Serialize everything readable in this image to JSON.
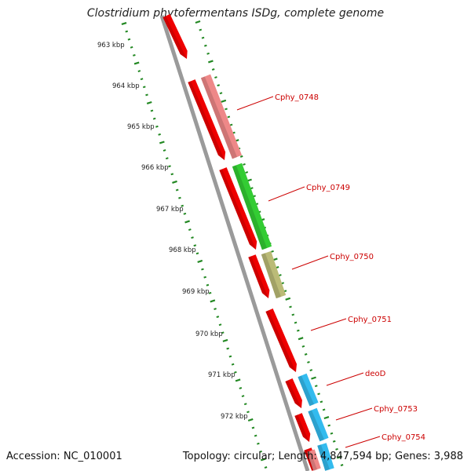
{
  "title": "Clostridium phytofermentans ISDg, complete genome",
  "footer": {
    "accession": "Accession: NC_010001",
    "topology": "Topology: circular; Length: 4,847,594 bp; Genes: 3,988"
  },
  "scale_labels": [
    "963 kbp",
    "964 kbp",
    "965 kbp",
    "966 kbp",
    "967 kbp",
    "968 kbp",
    "969 kbp",
    "970 kbp",
    "971 kbp",
    "972 kbp"
  ],
  "gene_labels": [
    "Cphy_0748",
    "Cphy_0749",
    "Cphy_0750",
    "Cphy_0751",
    "deoD",
    "Cphy_0753",
    "Cphy_0754"
  ],
  "colors": {
    "cds_red": "#ee0000",
    "pink": "#ee8888",
    "green": "#33cc33",
    "olive": "#bbbb77",
    "cyan": "#33bbee",
    "backbone": "#888888",
    "ticks": "#228822",
    "label_red": "#cc0000"
  }
}
